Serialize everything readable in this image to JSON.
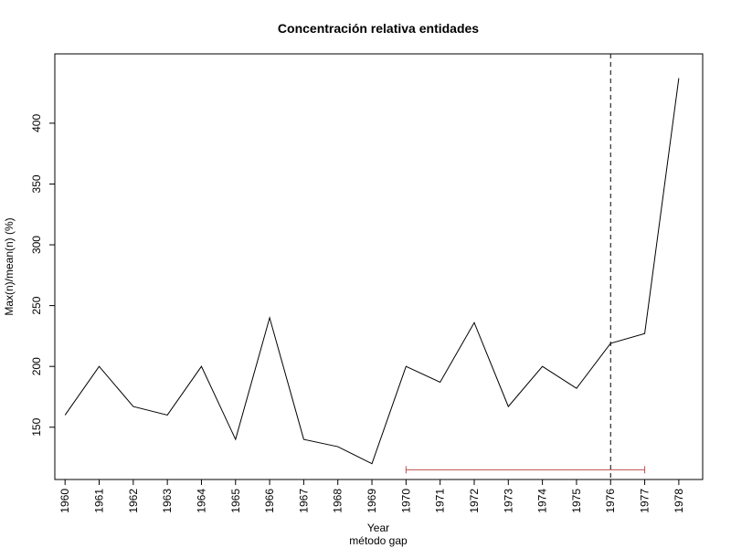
{
  "chart_data": {
    "type": "line",
    "title": "Concentración relativa entidades",
    "xlabel": "Year",
    "subtitle": "método gap",
    "ylabel": "Max(n)/mean(n) (%)",
    "x": [
      1960,
      1961,
      1962,
      1963,
      1964,
      1965,
      1966,
      1967,
      1968,
      1969,
      1970,
      1971,
      1972,
      1973,
      1974,
      1975,
      1976,
      1977,
      1978
    ],
    "x_tick_labels": [
      "1960",
      "1961",
      "1962",
      "1963",
      "1964",
      "1965",
      "1966",
      "1967",
      "1968",
      "1969",
      "1970",
      "1971",
      "1972",
      "1973",
      "1974",
      "1975",
      "1976",
      "1977",
      "1978"
    ],
    "series": [
      {
        "values": [
          160,
          200,
          167,
          160,
          200,
          140,
          240,
          140,
          134,
          120,
          200,
          187,
          236,
          167,
          200,
          182,
          219,
          227,
          437
        ],
        "color": "#000000"
      }
    ],
    "y_ticks": [
      150,
      200,
      250,
      300,
      350,
      400
    ],
    "y_tick_labels": [
      "150",
      "200",
      "250",
      "300",
      "350",
      "400"
    ],
    "xlim": [
      1959.7,
      1978.7
    ],
    "ylim": [
      107,
      457
    ],
    "vline": {
      "x": 1976,
      "style": "dashed",
      "color": "#000000"
    },
    "range_bar": {
      "x_start": 1970,
      "x_end": 1977,
      "y": 115,
      "color": "#c0504d"
    },
    "grid": false
  }
}
